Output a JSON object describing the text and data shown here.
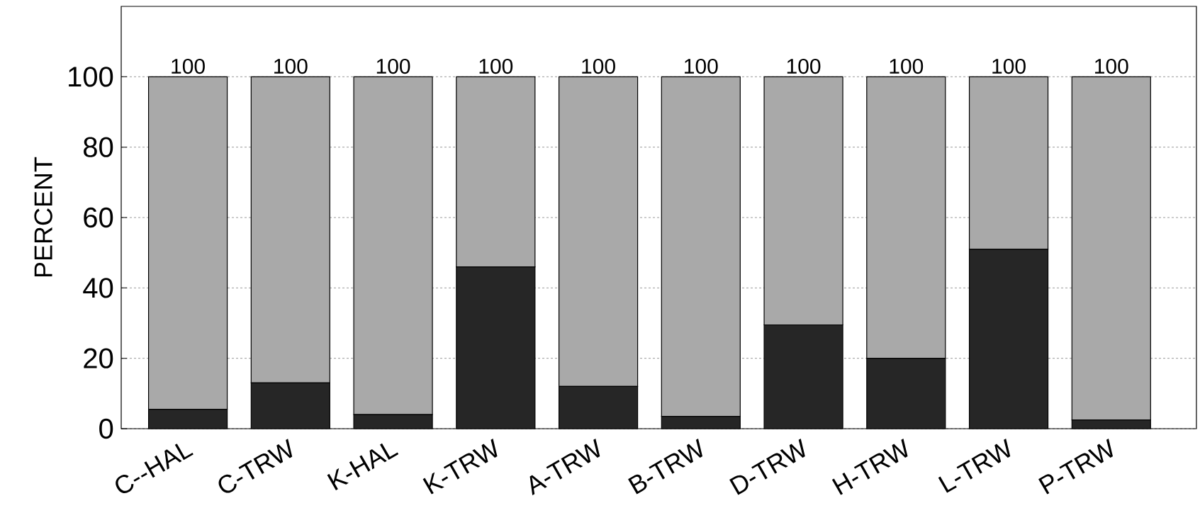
{
  "chart_data": {
    "type": "bar",
    "stacked": true,
    "ylabel": "PERCENT",
    "categories": [
      "C--HAL",
      "C-TRW",
      "K-HAL",
      "K-TRW",
      "A-TRW",
      "B-TRW",
      "D-TRW",
      "H-TRW",
      "L-TRW",
      "P-TRW"
    ],
    "series": [
      {
        "color": "#262626",
        "values": [
          5.5,
          13,
          4,
          46,
          12,
          3.5,
          29.5,
          20,
          51,
          2.5
        ]
      },
      {
        "color": "#a9a9a9",
        "values": [
          94.5,
          87,
          96,
          54,
          88,
          96.5,
          70.5,
          80,
          49,
          97.5
        ]
      }
    ],
    "totals": [
      "100",
      "100",
      "100",
      "100",
      "100",
      "100",
      "100",
      "100",
      "100",
      "100"
    ],
    "ylim": [
      0,
      120
    ],
    "yticks": [
      0,
      20,
      40,
      60,
      80,
      100
    ],
    "grid": "y"
  }
}
